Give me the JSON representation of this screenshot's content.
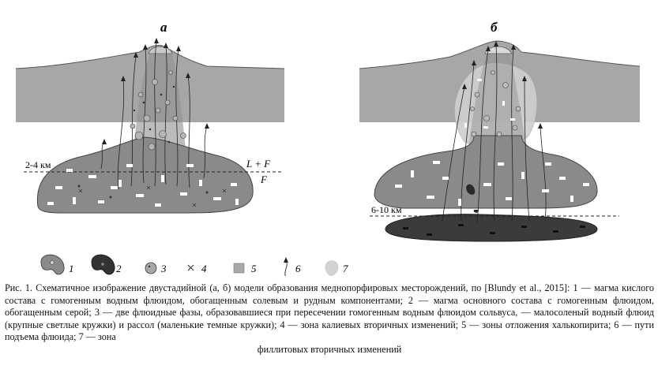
{
  "figure": {
    "panel_a_label": "а",
    "panel_b_label": "б",
    "depth_a": "2-4 км",
    "depth_b": "6-10 км",
    "label_lf": "L + F",
    "label_f": "F",
    "legend": [
      {
        "num": "1",
        "icon": "magma-with-fluid-icon"
      },
      {
        "num": "2",
        "icon": "mafic-magma-icon"
      },
      {
        "num": "3",
        "icon": "fluid-phases-icon"
      },
      {
        "num": "4",
        "icon": "potassic-alteration-cross-icon"
      },
      {
        "num": "5",
        "icon": "chalcopyrite-zone-square-icon"
      },
      {
        "num": "6",
        "icon": "fluid-path-arrow-icon"
      },
      {
        "num": "7",
        "icon": "phyllic-alteration-icon"
      }
    ]
  },
  "caption": {
    "line1": "Рис. 1. Схематичное изображение двустадийной (а, б) модели образования меднопорфировых месторождений, по [Blundy et al., 2015]: 1 — магма кислого состава с гомогенным водным флюидом, обогащенным солевым и рудным компонентами; 2 — магма основного состава с гомогенным флюидом, обогащенным серой; 3 — две флюидные фазы, образовавшиеся при пересечении гомогенным водным флюидом сольвуса, — малосоленый водный флюид (крупные светлые кружки) и рассол (маленькие темные кружки); 4 — зона калиевых вторичных изменений; 5 — зоны отложения халькопирита; 6 — пути подъема флюида; 7 — зона",
    "line2": "филлитовых вторичных изменений"
  }
}
